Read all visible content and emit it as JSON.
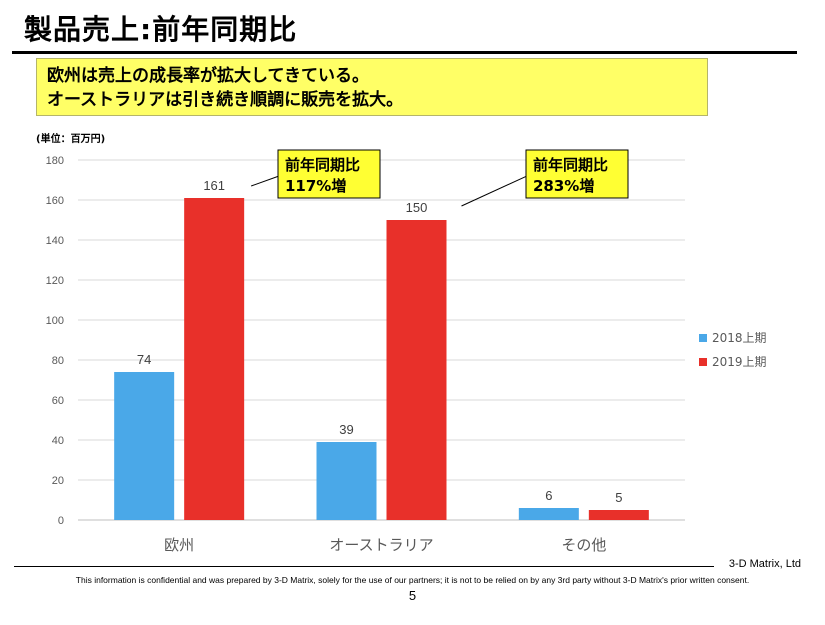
{
  "page": {
    "title": "製品売上:前年同期比",
    "summary_lines": [
      "欧州は売上の成長率が拡大してきている。",
      "オーストラリアは引き続き順調に販売を拡大。"
    ],
    "company": "3-D Matrix, Ltd",
    "disclaimer": "This information is confidential and was prepared by 3-D Matrix, solely for the use of our partners; it is not to be relied on by any 3rd party without 3-D Matrix's prior written consent.",
    "page_number": "5"
  },
  "colors": {
    "series_2018": "#4aa8e8",
    "series_2019": "#e8302a",
    "callout_bg": "#ffff33",
    "grid": "#d9d9d9"
  },
  "chart_data": {
    "type": "bar",
    "unit_label": "(単位：百万円)",
    "categories": [
      "欧州",
      "オーストラリア",
      "その他"
    ],
    "series": [
      {
        "name": "2018上期",
        "values": [
          74,
          39,
          6
        ]
      },
      {
        "name": "2019上期",
        "values": [
          161,
          150,
          5
        ]
      }
    ],
    "ylim": [
      0,
      180
    ],
    "yticks": [
      0,
      20,
      40,
      60,
      80,
      100,
      120,
      140,
      160,
      180
    ],
    "grid": true,
    "legend_position": "right",
    "annotations": [
      {
        "category_index": 0,
        "line1": "前年同期比",
        "line2": "117%増"
      },
      {
        "category_index": 1,
        "line1": "前年同期比",
        "line2": "283%増"
      }
    ]
  }
}
